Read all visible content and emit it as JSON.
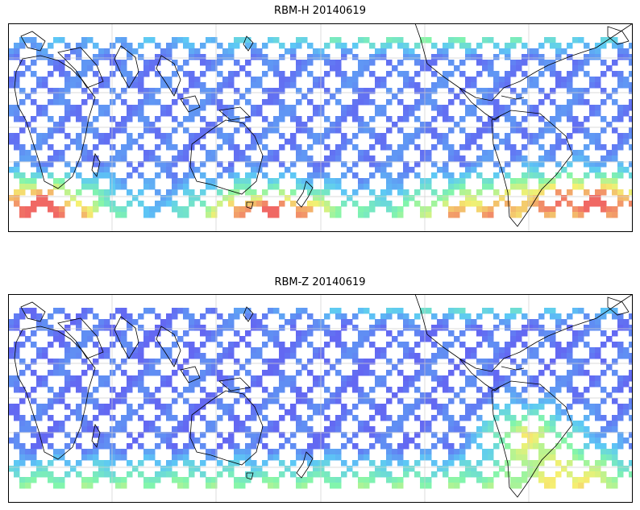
{
  "panels": [
    {
      "title": "RBM-H 20140619",
      "variable": "RBM-H",
      "date": "20140619"
    },
    {
      "title": "RBM-Z 20140619",
      "variable": "RBM-Z",
      "date": "20140619"
    }
  ],
  "map": {
    "projection": "plate-carree",
    "center_lon": 180,
    "gridlines": true,
    "coastlines": true,
    "colormap": "jet",
    "colormap_alpha": 0.6
  },
  "colors": {
    "low": "#5b5bf2",
    "mid_low": "#55c6f5",
    "mid": "#7cf5a8",
    "mid_high": "#f5f06a",
    "high": "#f0605c",
    "coast": "#000000",
    "grid": "#cfcfcf"
  }
}
